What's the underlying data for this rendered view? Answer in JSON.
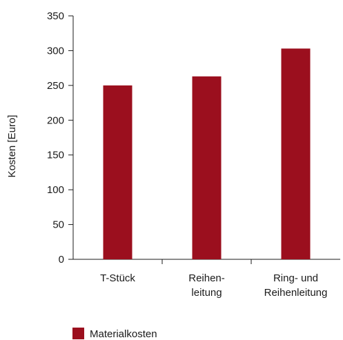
{
  "chart_data": {
    "type": "bar",
    "categories": [
      [
        "T-Stück"
      ],
      [
        "Reihen-",
        "leitung"
      ],
      [
        "Ring- und",
        "Reihenleitung"
      ]
    ],
    "series": [
      {
        "name": "Materialkosten",
        "values": [
          250,
          263,
          303
        ],
        "color": "#9b0f1e"
      }
    ],
    "ylabel": "Kosten [Euro]",
    "ylim": [
      0,
      350
    ],
    "yticks": [
      0,
      50,
      100,
      150,
      200,
      250,
      300,
      350
    ],
    "grid": false,
    "legend_position": "bottom-left"
  }
}
